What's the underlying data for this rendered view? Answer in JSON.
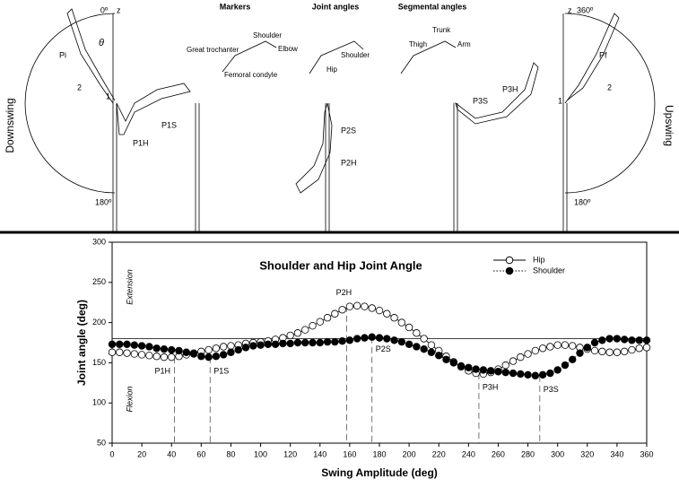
{
  "diagram": {
    "labels": [
      "Downswing",
      "Upswing",
      "0º",
      "z",
      "Pi",
      "θ",
      "2",
      "1",
      "180º",
      "P1H",
      "P1S",
      "Markers",
      "Shoulder",
      "Great trochanter",
      "Elbow",
      "Femoral condyle",
      "Joint angles",
      "Hip",
      "Shoulder",
      "P2S",
      "P2H",
      "Segmental angles",
      "Trunk",
      "Thigh",
      "Arm",
      "P3S",
      "P3H",
      "360º",
      "z",
      "Pf",
      "2",
      "1",
      "180º"
    ]
  },
  "chart_data": {
    "type": "scatter-line",
    "title": "Shoulder and Hip Joint Angle",
    "x_label": "Swing Amplitude (deg)",
    "y_label": "Joint angle (deg)",
    "x": [
      0,
      5,
      10,
      15,
      20,
      25,
      30,
      35,
      40,
      45,
      50,
      55,
      60,
      65,
      70,
      75,
      80,
      85,
      90,
      95,
      100,
      105,
      110,
      115,
      120,
      125,
      130,
      135,
      140,
      145,
      150,
      155,
      160,
      165,
      170,
      175,
      180,
      185,
      190,
      195,
      200,
      205,
      210,
      215,
      220,
      225,
      230,
      235,
      240,
      245,
      250,
      255,
      260,
      265,
      270,
      275,
      280,
      285,
      290,
      295,
      300,
      305,
      310,
      315,
      320,
      325,
      330,
      335,
      340,
      345,
      350,
      355,
      360
    ],
    "series": [
      {
        "name": "Hip",
        "color": "#000000",
        "marker": "open",
        "line": "solid",
        "values": [
          163,
          163,
          162,
          161,
          160,
          159,
          158,
          157,
          157,
          158,
          160,
          162,
          164,
          166,
          168,
          170,
          171,
          172,
          174,
          175,
          176,
          177,
          179,
          181,
          184,
          187,
          191,
          196,
          201,
          206,
          211,
          216,
          220,
          221,
          220,
          218,
          215,
          211,
          206,
          200,
          194,
          187,
          180,
          172,
          165,
          158,
          151,
          145,
          140,
          137,
          136,
          138,
          142,
          147,
          152,
          157,
          161,
          165,
          168,
          170,
          172,
          172,
          171,
          169,
          167,
          165,
          164,
          163,
          163,
          164,
          166,
          168,
          169
        ]
      },
      {
        "name": "Shoulder",
        "color": "#000000",
        "marker": "filled",
        "line": "dotted",
        "values": [
          173,
          173,
          173,
          172,
          171,
          170,
          168,
          167,
          166,
          165,
          163,
          161,
          158,
          157,
          158,
          160,
          163,
          166,
          169,
          171,
          172,
          173,
          173,
          174,
          174,
          175,
          175,
          175,
          175,
          176,
          176,
          177,
          178,
          180,
          181,
          182,
          181,
          180,
          178,
          176,
          173,
          170,
          167,
          163,
          159,
          154,
          150,
          146,
          144,
          142,
          141,
          140,
          139,
          138,
          137,
          136,
          135,
          134,
          135,
          137,
          141,
          147,
          154,
          162,
          169,
          175,
          178,
          180,
          180,
          179,
          178,
          178,
          178
        ]
      }
    ],
    "reference_line": 180,
    "annotations": [
      {
        "label": "P1H",
        "x": 42,
        "y": 157
      },
      {
        "label": "P1S",
        "x": 66,
        "y": 157
      },
      {
        "label": "P2H",
        "x": 158,
        "y": 221
      },
      {
        "label": "P2S",
        "x": 175,
        "y": 182
      },
      {
        "label": "P3H",
        "x": 247,
        "y": 137
      },
      {
        "label": "P3S",
        "x": 288,
        "y": 134
      }
    ],
    "region_labels": [
      "Extension",
      "Flexion"
    ],
    "xlim": [
      0,
      360
    ],
    "xticks": [
      0,
      20,
      40,
      60,
      80,
      100,
      120,
      140,
      160,
      180,
      200,
      220,
      240,
      260,
      280,
      300,
      320,
      340,
      360
    ],
    "ylim": [
      50,
      300
    ],
    "yticks": [
      50,
      100,
      150,
      200,
      250,
      300
    ],
    "legend": "upper right"
  }
}
